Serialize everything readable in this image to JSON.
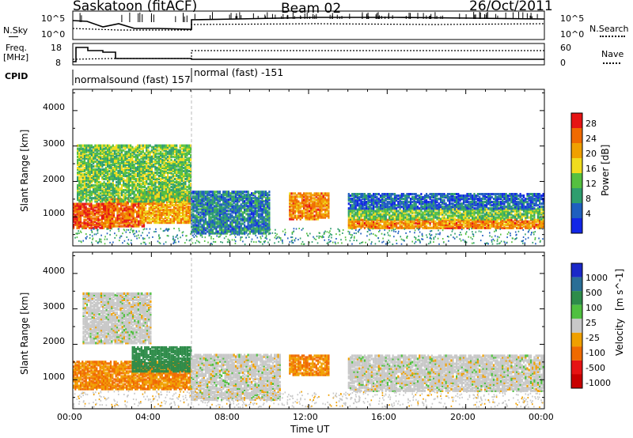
{
  "header": {
    "site": "Saskatoon (fitACF)",
    "beam": "Beam 02",
    "date": "26/Oct/2011"
  },
  "noise_panel": {
    "left_label": "N.Sky",
    "right_label": "N.Search",
    "left_ticks": [
      "10^5",
      "10^0"
    ],
    "right_ticks": [
      "10^5",
      "10^0"
    ]
  },
  "freq_panel": {
    "left_label_1": "Freq.",
    "left_label_2": "[MHz]",
    "left_ticks": [
      "18",
      "8"
    ],
    "right_label": "Nave",
    "right_ticks": [
      "60",
      "0"
    ]
  },
  "cpid": {
    "label": "CPID",
    "modes": [
      "normalsound (fast) 157",
      "normal (fast) -151"
    ]
  },
  "x_axis": {
    "title": "Time UT",
    "ticks": [
      "00:00",
      "04:00",
      "08:00",
      "12:00",
      "16:00",
      "20:00",
      "00:00"
    ]
  },
  "y_axis": {
    "title": "Slant Range [km]",
    "ticks": [
      "1000",
      "2000",
      "3000",
      "4000"
    ]
  },
  "power_bar": {
    "title": "Power [dB]",
    "ticks": [
      "4",
      "8",
      "12",
      "16",
      "20",
      "24",
      "28"
    ],
    "colors": [
      "#1226e6",
      "#1f5fbf",
      "#2e9e6e",
      "#55c040",
      "#f0dc1e",
      "#f0a000",
      "#f06a00",
      "#e61414"
    ]
  },
  "velocity_bar": {
    "title": "Velocity",
    "unit": "[m s^-1]",
    "ticks": [
      "1000",
      "500",
      "100",
      "25",
      "-25",
      "-100",
      "-500",
      "-1000"
    ],
    "colors": [
      "#1a28c8",
      "#2a6e96",
      "#2e8c4a",
      "#50c040",
      "#c8c8c8",
      "#f0a000",
      "#f06a00",
      "#e61414",
      "#c80000"
    ]
  },
  "chart_data": [
    {
      "type": "heatmap",
      "title": "Power",
      "xlabel": "Time UT",
      "ylabel": "Slant Range [km]",
      "xlim": [
        0,
        24
      ],
      "ylim": [
        180,
        4600
      ],
      "colorbar": "Power [dB]",
      "clim": [
        0,
        32
      ],
      "regions": [
        {
          "t0": 0.0,
          "t1": 2.0,
          "r0": 650,
          "r1": 1350,
          "value": 28
        },
        {
          "t0": 1.6,
          "t1": 3.6,
          "r0": 700,
          "r1": 1500,
          "value": 26
        },
        {
          "t0": 3.4,
          "t1": 6.0,
          "r0": 800,
          "r1": 1700,
          "value": 22
        },
        {
          "t0": 0.2,
          "t1": 6.0,
          "r0": 1400,
          "r1": 3000,
          "value": 14
        },
        {
          "t0": 6.0,
          "t1": 10.0,
          "r0": 500,
          "r1": 1700,
          "value": 8
        },
        {
          "t0": 11.0,
          "t1": 13.0,
          "r0": 900,
          "r1": 1650,
          "value": 24
        },
        {
          "t0": 14.0,
          "t1": 23.9,
          "r0": 650,
          "r1": 900,
          "value": 24
        },
        {
          "t0": 14.0,
          "t1": 23.9,
          "r0": 900,
          "r1": 1200,
          "value": 14
        },
        {
          "t0": 14.0,
          "t1": 23.9,
          "r0": 1200,
          "r1": 1650,
          "value": 6
        }
      ]
    },
    {
      "type": "heatmap",
      "title": "Velocity",
      "xlabel": "Time UT",
      "ylabel": "Slant Range [km]",
      "xlim": [
        0,
        24
      ],
      "ylim": [
        180,
        4600
      ],
      "colorbar": "Velocity [m s^-1]",
      "regions": [
        {
          "t0": 0.0,
          "t1": 6.0,
          "r0": 700,
          "r1": 1500,
          "value": -100
        },
        {
          "t0": 3.0,
          "t1": 6.0,
          "r0": 1200,
          "r1": 1900,
          "value": 100
        },
        {
          "t0": 0.5,
          "t1": 4.0,
          "r0": 2000,
          "r1": 3400,
          "value": 0
        },
        {
          "t0": 6.0,
          "t1": 10.5,
          "r0": 400,
          "r1": 1700,
          "value": 0
        },
        {
          "t0": 11.0,
          "t1": 13.0,
          "r0": 1100,
          "r1": 1650,
          "value": -100
        },
        {
          "t0": 14.0,
          "t1": 23.9,
          "r0": 650,
          "r1": 1650,
          "value": 0
        }
      ]
    }
  ]
}
